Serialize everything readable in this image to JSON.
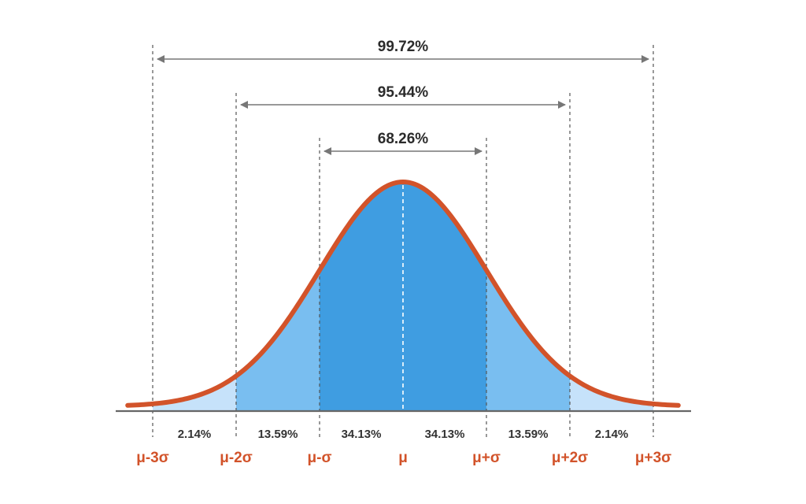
{
  "chart_data": {
    "type": "area",
    "distribution": "normal",
    "title": "",
    "xlabel": "",
    "ylabel": "",
    "xlim": [
      -3,
      3
    ],
    "x_ticks": [
      {
        "value": -3,
        "label": "μ-3σ"
      },
      {
        "value": -2,
        "label": "μ-2σ"
      },
      {
        "value": -1,
        "label": "μ-σ"
      },
      {
        "value": 0,
        "label": "μ"
      },
      {
        "value": 1,
        "label": "μ+σ"
      },
      {
        "value": 2,
        "label": "μ+2σ"
      },
      {
        "value": 3,
        "label": "μ+3σ"
      }
    ],
    "regions": [
      {
        "from": -3,
        "to": -2,
        "value": 2.14,
        "label": "2.14%",
        "color": "#c6e2fa"
      },
      {
        "from": -2,
        "to": -1,
        "value": 13.59,
        "label": "13.59%",
        "color": "#79bef0"
      },
      {
        "from": -1,
        "to": 0,
        "value": 34.13,
        "label": "34.13%",
        "color": "#3f9de1"
      },
      {
        "from": 0,
        "to": 1,
        "value": 34.13,
        "label": "34.13%",
        "color": "#3f9de1"
      },
      {
        "from": 1,
        "to": 2,
        "value": 13.59,
        "label": "13.59%",
        "color": "#79bef0"
      },
      {
        "from": 2,
        "to": 3,
        "value": 2.14,
        "label": "2.14%",
        "color": "#c6e2fa"
      }
    ],
    "spans": [
      {
        "from": -1,
        "to": 1,
        "value": 68.26,
        "label": "68.26%"
      },
      {
        "from": -2,
        "to": 2,
        "value": 95.44,
        "label": "95.44%"
      },
      {
        "from": -3,
        "to": 3,
        "value": 99.72,
        "label": "99.72%"
      }
    ],
    "colors": {
      "curve": "#d2532a",
      "tick_text": "#d2532a",
      "axis": "#666666",
      "guide_lines": "#555555",
      "arrows": "#777777",
      "center_line": "#ffffff"
    }
  }
}
